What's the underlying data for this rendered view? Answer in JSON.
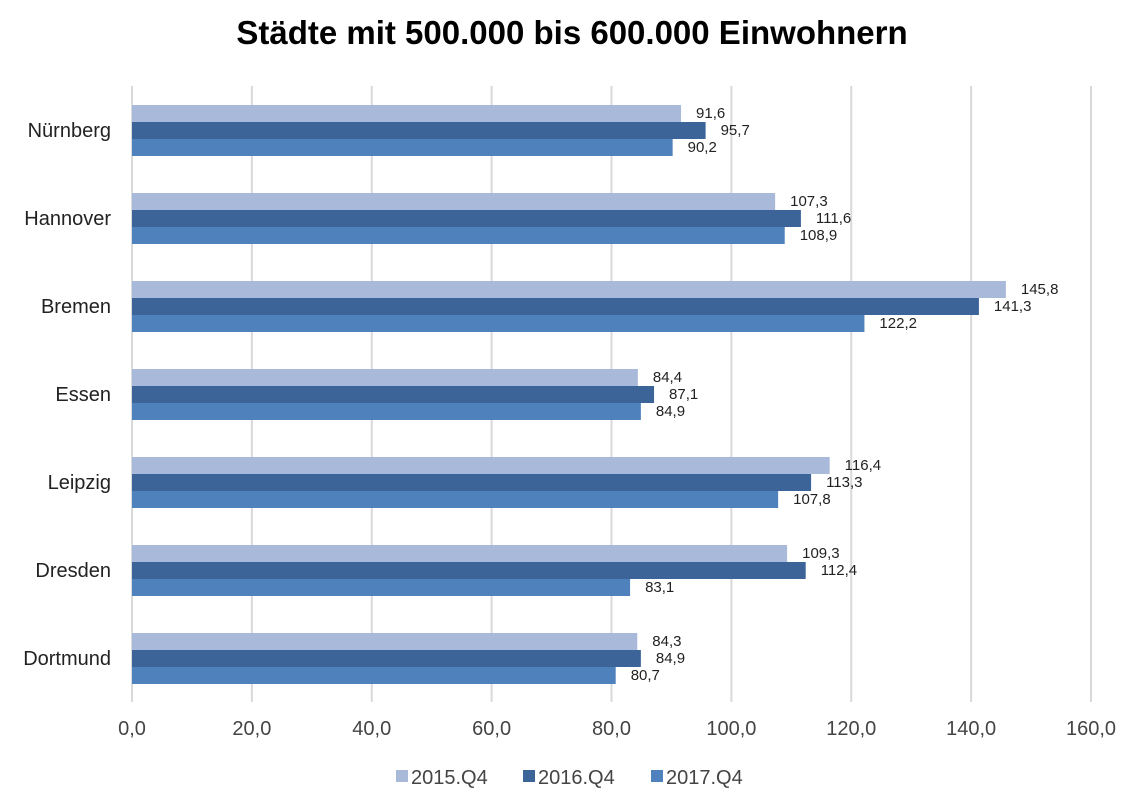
{
  "chart_data": {
    "type": "bar",
    "orientation": "horizontal",
    "title": "Städte mit 500.000 bis 600.000 Einwohnern",
    "categories": [
      "Nürnberg",
      "Hannover",
      "Bremen",
      "Essen",
      "Leipzig",
      "Dresden",
      "Dortmund"
    ],
    "series": [
      {
        "name": "2015.Q4",
        "color": "#a9b9d9",
        "values": [
          91.6,
          107.3,
          145.8,
          84.4,
          116.4,
          109.3,
          84.3
        ],
        "labels": [
          "91,6",
          "107,3",
          "145,8",
          "84,4",
          "116,4",
          "109,3",
          "84,3"
        ]
      },
      {
        "name": "2016.Q4",
        "color": "#3d6499",
        "values": [
          95.7,
          111.6,
          141.3,
          87.1,
          113.3,
          112.4,
          84.9
        ],
        "labels": [
          "95,7",
          "111,6",
          "141,3",
          "87,1",
          "113,3",
          "112,4",
          "84,9"
        ]
      },
      {
        "name": "2017.Q4",
        "color": "#4f81bd",
        "values": [
          90.2,
          108.9,
          122.2,
          84.9,
          107.8,
          83.1,
          80.7
        ],
        "labels": [
          "90,2",
          "108,9",
          "122,2",
          "84,9",
          "107,8",
          "83,1",
          "80,7"
        ]
      }
    ],
    "xlim": [
      0,
      160
    ],
    "xticks": [
      0,
      20,
      40,
      60,
      80,
      100,
      120,
      140,
      160
    ],
    "xtick_labels": [
      "0,0",
      "20,0",
      "40,0",
      "60,0",
      "80,0",
      "100,0",
      "120,0",
      "140,0",
      "160,0"
    ],
    "grid": true,
    "legend": "bottom",
    "xlabel": "",
    "ylabel": ""
  }
}
